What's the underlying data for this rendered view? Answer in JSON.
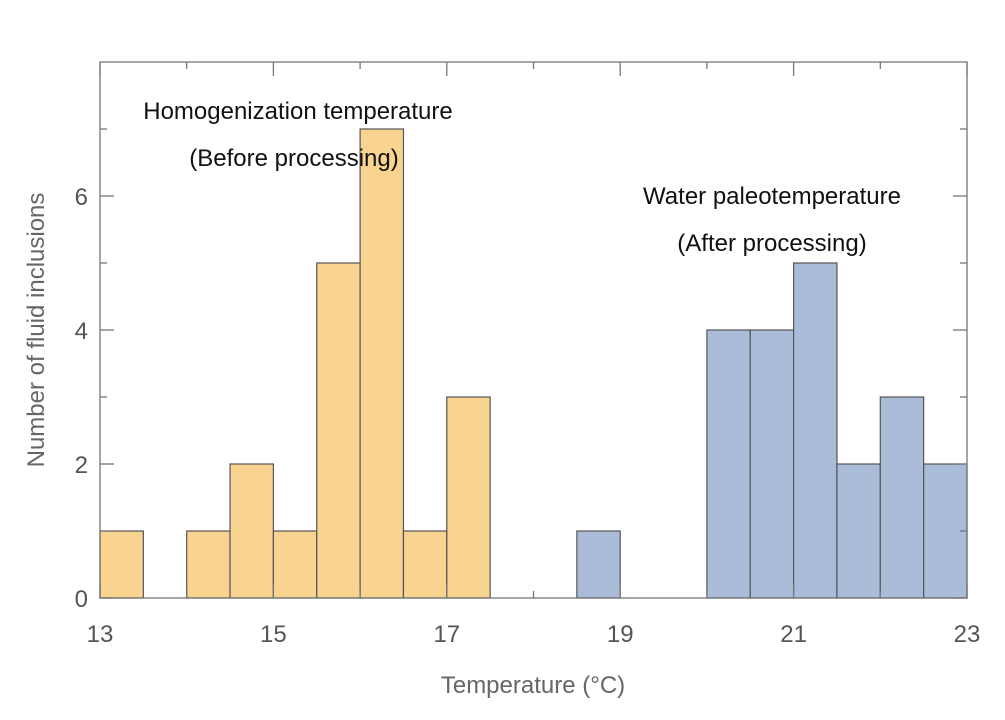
{
  "chart_data": {
    "type": "bar",
    "subtype": "histogram",
    "xlabel": "Temperature (°C)",
    "ylabel": "Number of fluid inclusions",
    "xlim": [
      13,
      23
    ],
    "ylim": [
      0,
      8
    ],
    "xticks": [
      "13",
      "15",
      "17",
      "19",
      "21",
      "23"
    ],
    "yticks": [
      "0",
      "2",
      "4",
      "6"
    ],
    "grid": false,
    "bin_width": 0.5,
    "series": [
      {
        "color": "#f9d390",
        "bins": [
          {
            "x0": 13.0,
            "count": 1
          },
          {
            "x0": 14.0,
            "count": 1
          },
          {
            "x0": 14.5,
            "count": 2
          },
          {
            "x0": 15.0,
            "count": 1
          },
          {
            "x0": 15.5,
            "count": 5
          },
          {
            "x0": 16.0,
            "count": 7
          },
          {
            "x0": 16.5,
            "count": 1
          },
          {
            "x0": 17.0,
            "count": 3
          }
        ]
      },
      {
        "color": "#aabcd7",
        "bins": [
          {
            "x0": 18.5,
            "count": 1
          },
          {
            "x0": 20.0,
            "count": 4
          },
          {
            "x0": 20.5,
            "count": 4
          },
          {
            "x0": 21.0,
            "count": 5
          },
          {
            "x0": 21.5,
            "count": 2
          },
          {
            "x0": 22.0,
            "count": 3
          },
          {
            "x0": 22.5,
            "count": 2
          }
        ]
      }
    ],
    "annotations": [
      {
        "lines": [
          "Homogenization temperature",
          "(Before processing)"
        ]
      },
      {
        "lines": [
          "Water paleotemperature",
          "(After processing)"
        ]
      }
    ]
  }
}
